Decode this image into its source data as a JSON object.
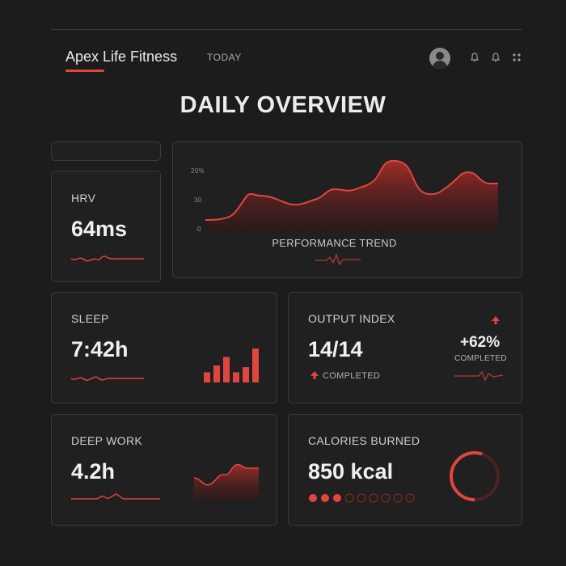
{
  "header": {
    "brand": "Apex Life Fitness",
    "today_tab": "TODAY"
  },
  "page_title": "DAILY OVERVIEW",
  "accent_color": "#e0463f",
  "trend": {
    "title": "PERFORMANCE TREND",
    "y_ticks": [
      "20%",
      "30",
      "0"
    ]
  },
  "cards": {
    "hrv": {
      "label": "HRV",
      "value": "64ms"
    },
    "sleep": {
      "label": "SLEEP",
      "value": "7:42h",
      "bars": [
        0.3,
        0.5,
        0.75,
        0.3,
        0.45,
        1.0
      ]
    },
    "output": {
      "label": "OUTPUT INDEX",
      "value": "14/14",
      "status": "COMPLETED",
      "delta": "+62%",
      "delta_status": "COMPLETED"
    },
    "deep_work": {
      "label": "DEEP WORK",
      "value": "4.2h"
    },
    "calories": {
      "label": "CALORIES BURNED",
      "value": "850 kcal",
      "ring_progress": 0.55,
      "dots_filled": 3,
      "dots_total": 9
    }
  },
  "icons": [
    "user-avatar",
    "bell-icon",
    "bell-icon",
    "grid-icon",
    "arrow-up-icon"
  ]
}
